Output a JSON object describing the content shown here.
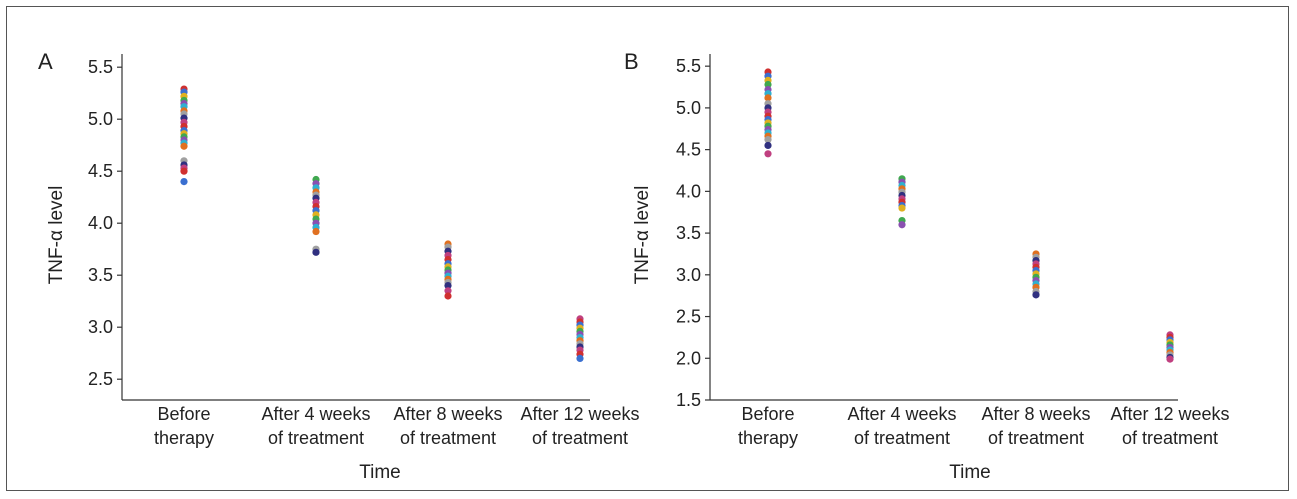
{
  "chart_data": [
    {
      "type": "scatter",
      "panel_label": "A",
      "xlabel": "Time",
      "ylabel": "TNF-α level",
      "categories": [
        [
          "Before",
          "therapy"
        ],
        [
          "After 4 weeks",
          "of treatment"
        ],
        [
          "After 8 weeks",
          "of treatment"
        ],
        [
          "After 12 weeks",
          "of treatment"
        ]
      ],
      "yticks": [
        2.5,
        3.0,
        3.5,
        4.0,
        4.5,
        5.0,
        5.5
      ],
      "ylim": [
        2.3,
        5.55
      ],
      "grid": false,
      "series": [
        {
          "values": [
            [
              5.29,
              5.26,
              5.22,
              5.18,
              5.15,
              5.12,
              5.08,
              5.05,
              5.01,
              4.97,
              4.93,
              4.89,
              4.86,
              4.83,
              4.8,
              4.77,
              4.74,
              4.6,
              4.56,
              4.53,
              4.5,
              4.4
            ],
            [
              4.42,
              4.38,
              4.34,
              4.3,
              4.27,
              4.24,
              4.2,
              4.16,
              4.12,
              4.08,
              4.04,
              4.0,
              3.96,
              3.92,
              3.75,
              3.72
            ],
            [
              3.8,
              3.77,
              3.73,
              3.69,
              3.65,
              3.61,
              3.58,
              3.55,
              3.52,
              3.49,
              3.46,
              3.43,
              3.4,
              3.35,
              3.3
            ],
            [
              3.08,
              3.05,
              3.02,
              2.99,
              2.96,
              2.93,
              2.9,
              2.87,
              2.84,
              2.81,
              2.78,
              2.74,
              2.7
            ]
          ]
        }
      ]
    },
    {
      "type": "scatter",
      "panel_label": "B",
      "xlabel": "Time",
      "ylabel": "TNF-α level",
      "categories": [
        [
          "Before",
          "therapy"
        ],
        [
          "After 4 weeks",
          "of treatment"
        ],
        [
          "After 8 weeks",
          "of treatment"
        ],
        [
          "After 12 weeks",
          "of treatment"
        ]
      ],
      "yticks": [
        1.5,
        2.0,
        2.5,
        3.0,
        3.5,
        4.0,
        4.5,
        5.0,
        5.5
      ],
      "ylim": [
        1.5,
        5.55
      ],
      "grid": false,
      "series": [
        {
          "values": [
            [
              5.43,
              5.38,
              5.33,
              5.28,
              5.22,
              5.17,
              5.12,
              5.05,
              5.0,
              4.95,
              4.9,
              4.86,
              4.82,
              4.78,
              4.74,
              4.7,
              4.66,
              4.62,
              4.55,
              4.45
            ],
            [
              4.15,
              4.11,
              4.07,
              4.03,
              3.99,
              3.95,
              3.91,
              3.87,
              3.83,
              3.8,
              3.65,
              3.6
            ],
            [
              3.25,
              3.21,
              3.17,
              3.13,
              3.09,
              3.05,
              3.01,
              2.97,
              2.93,
              2.89,
              2.85,
              2.8,
              2.76
            ],
            [
              2.28,
              2.25,
              2.22,
              2.19,
              2.16,
              2.13,
              2.1,
              2.07,
              2.04,
              2.01,
              1.99
            ]
          ]
        }
      ]
    }
  ],
  "marker_colors": [
    "#d03030",
    "#3a6fd0",
    "#e0b020",
    "#40a850",
    "#8a50b0",
    "#30b0d0",
    "#e07020",
    "#a0a0a0",
    "#303080",
    "#c04080"
  ]
}
